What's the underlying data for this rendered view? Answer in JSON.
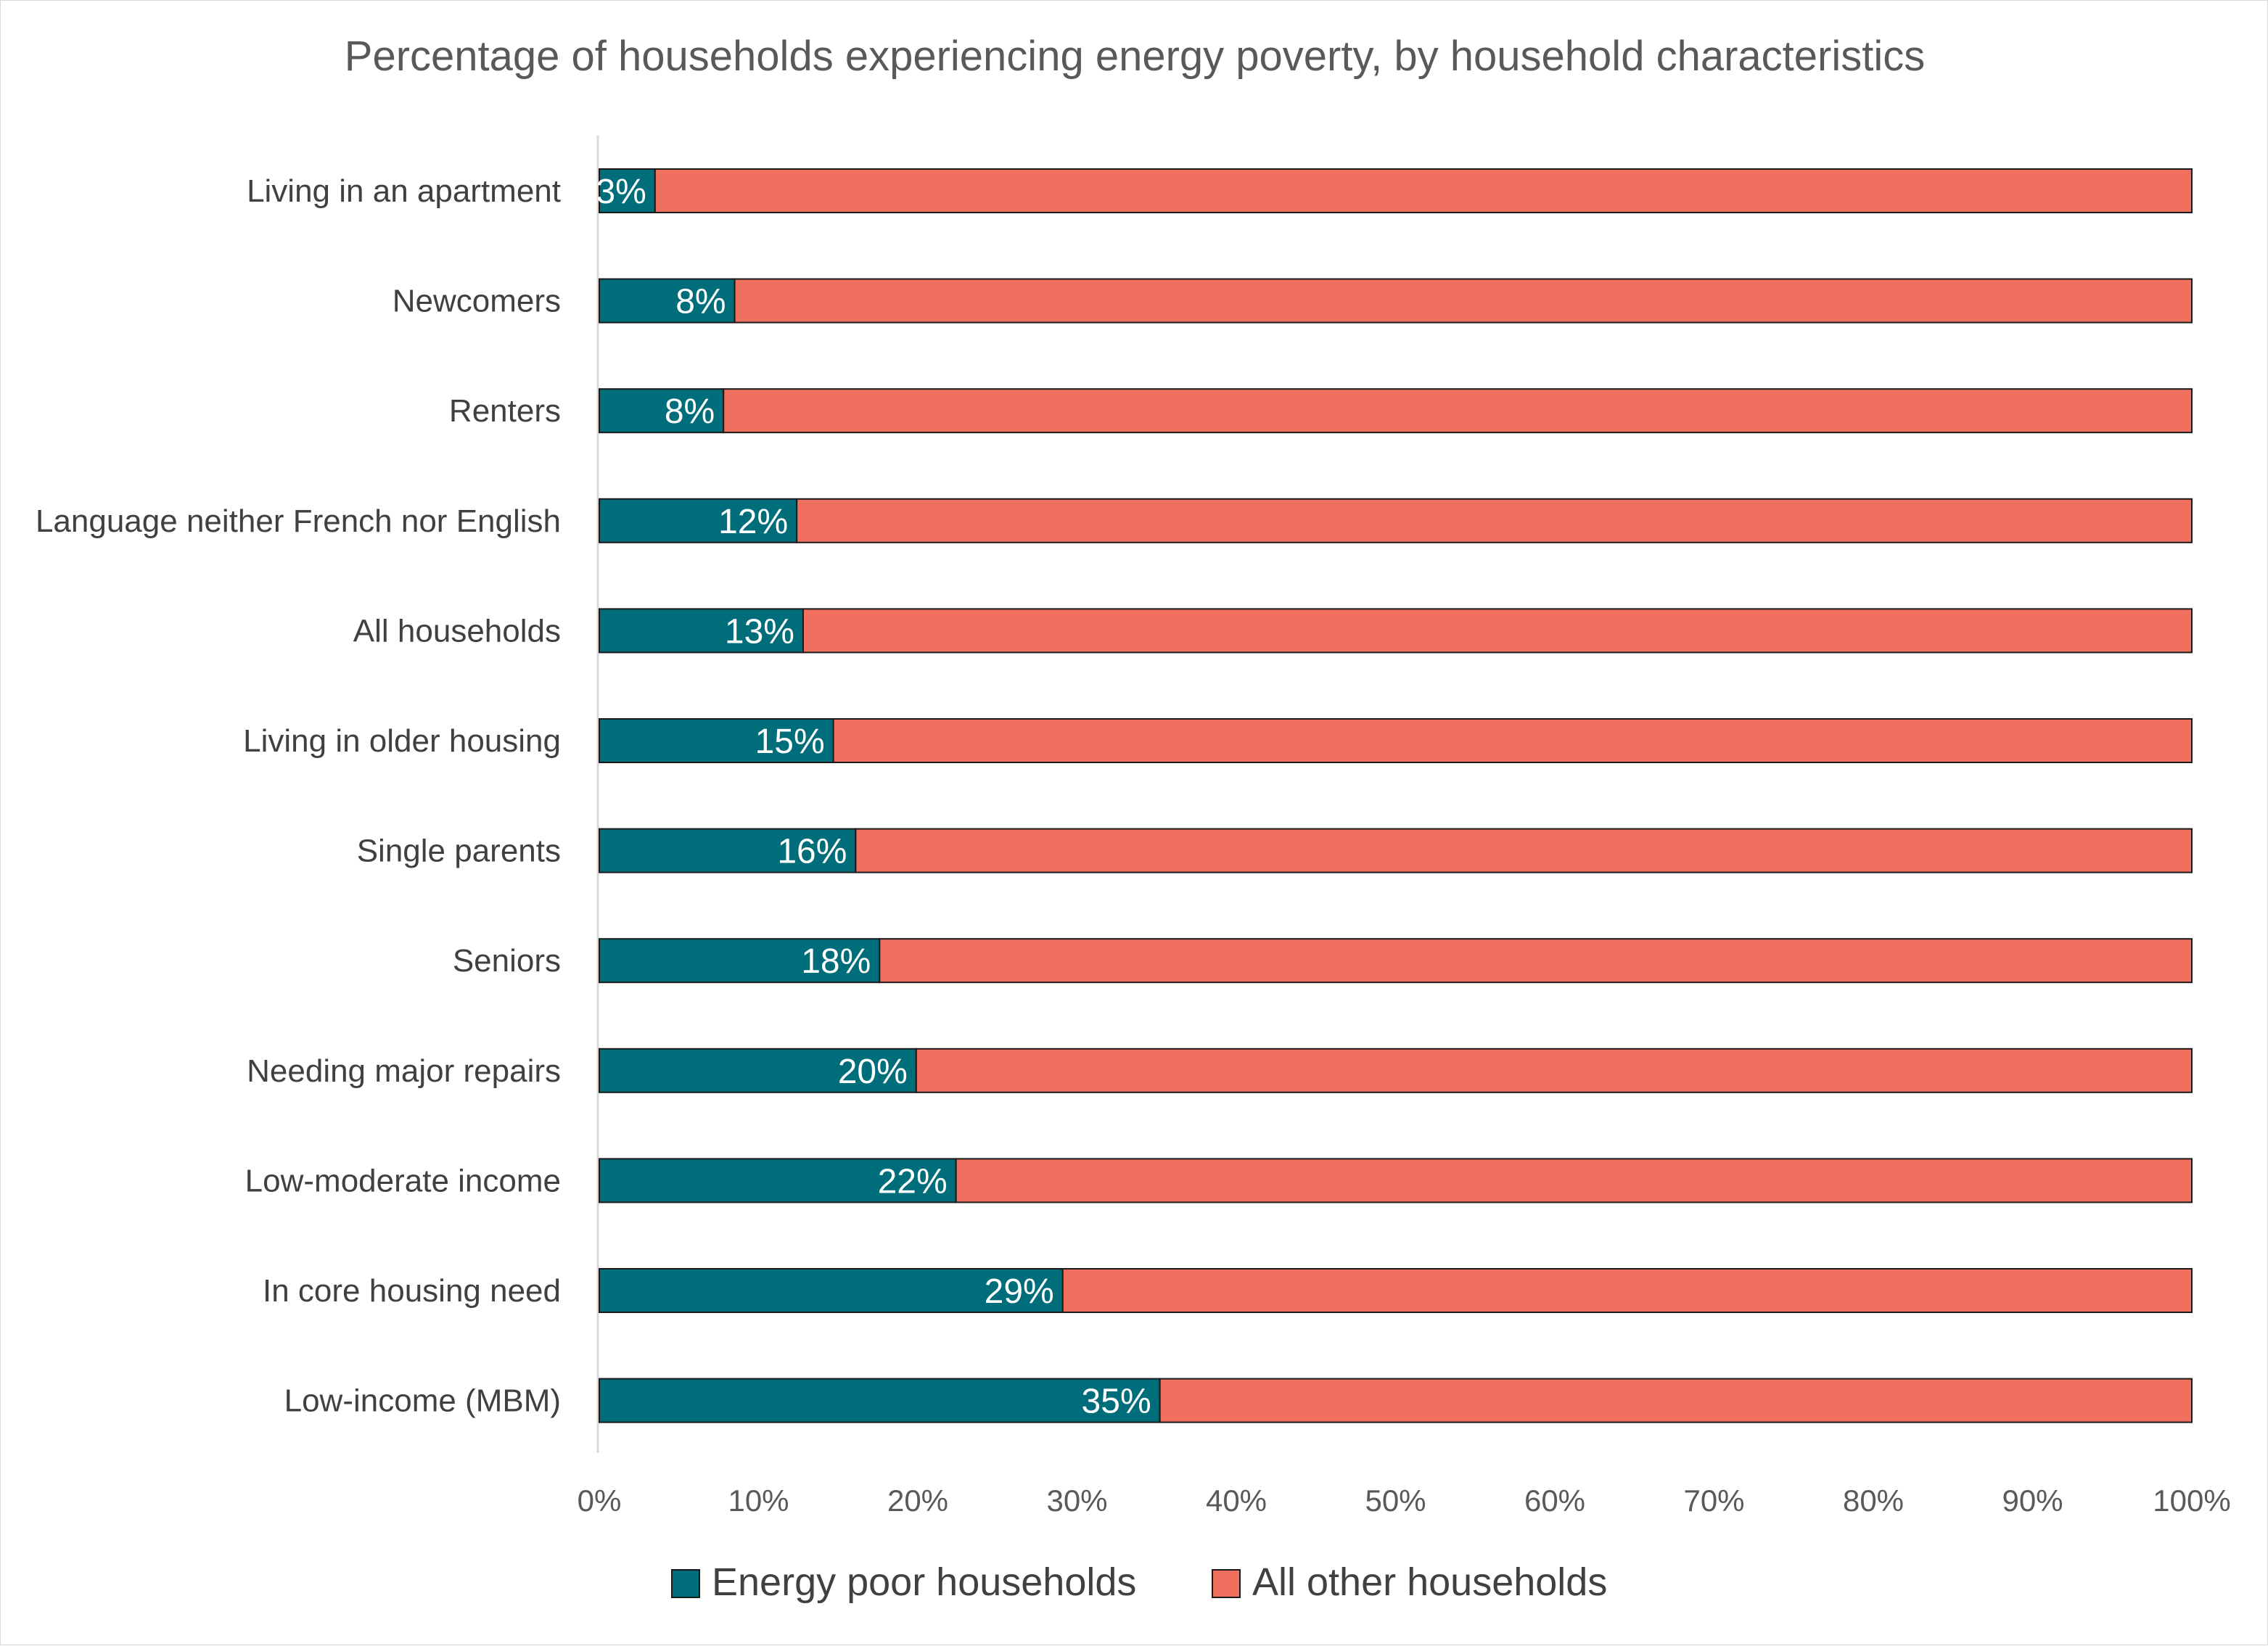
{
  "chart_data": {
    "type": "bar",
    "orientation": "horizontal",
    "stacked": "percent",
    "title": "Percentage of households experiencing energy poverty, by household characteristics",
    "categories": [
      "Living in an apartment",
      "Newcomers",
      "Renters",
      "Language neither French nor English",
      "All households",
      "Living in older housing",
      "Single parents",
      "Seniors",
      "Needing major repairs",
      "Low-moderate income",
      "In core housing need",
      "Low-income (MBM)"
    ],
    "series": [
      {
        "name": "Energy poor households",
        "color": "#006d7b",
        "values": [
          3.5,
          8.5,
          7.8,
          12.4,
          12.8,
          14.7,
          16.1,
          17.6,
          19.9,
          22.4,
          29.1,
          35.2
        ],
        "labels": [
          "3%",
          "8%",
          "8%",
          "12%",
          "13%",
          "15%",
          "16%",
          "18%",
          "20%",
          "22%",
          "29%",
          "35%"
        ]
      },
      {
        "name": "All other households",
        "color": "#f07060",
        "values": [
          96.5,
          91.5,
          92.2,
          87.6,
          87.2,
          85.3,
          83.9,
          82.4,
          80.1,
          77.6,
          70.9,
          64.8
        ]
      }
    ],
    "xaxis": {
      "range": [
        0,
        100
      ],
      "ticks": [
        "0%",
        "10%",
        "20%",
        "30%",
        "40%",
        "50%",
        "60%",
        "70%",
        "80%",
        "90%",
        "100%"
      ]
    },
    "legend": "bottom",
    "grid": false
  }
}
